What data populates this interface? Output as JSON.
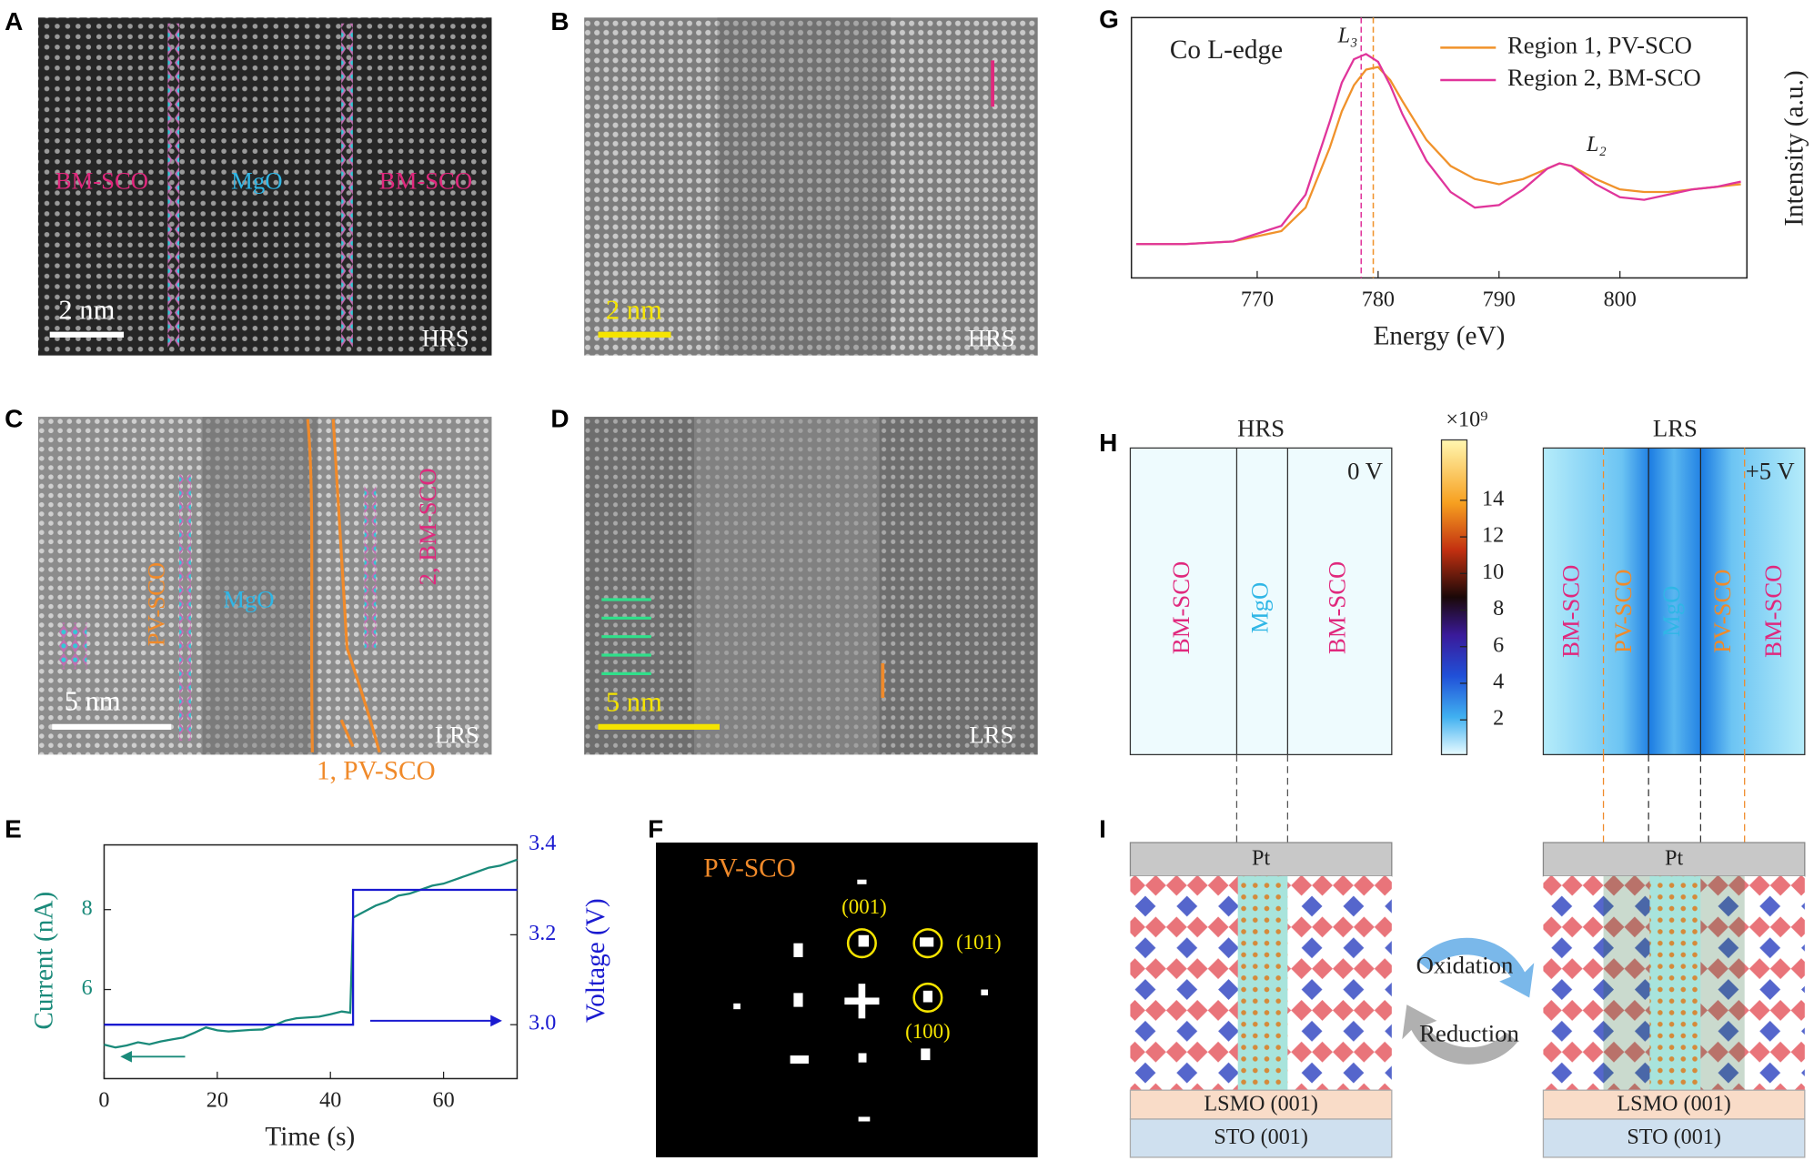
{
  "panels": {
    "A": {
      "letter": "A",
      "labels": [
        "BM-SCO",
        "MgO",
        "BM-SCO"
      ],
      "scale_bar": "2 nm",
      "state": "HRS"
    },
    "B": {
      "letter": "B",
      "scale_bar": "2 nm",
      "state": "HRS"
    },
    "C": {
      "letter": "C",
      "labels": [
        "PV-SCO",
        "MgO",
        "2, BM-SCO",
        "1, PV-SCO"
      ],
      "scale_bar": "5 nm",
      "state": "LRS"
    },
    "D": {
      "letter": "D",
      "scale_bar": "5 nm",
      "state": "LRS"
    },
    "E": {
      "letter": "E"
    },
    "F": {
      "letter": "F",
      "title": "PV-SCO",
      "spots": [
        "(001)",
        "(101)",
        "(100)"
      ]
    },
    "G": {
      "letter": "G"
    },
    "H": {
      "letter": "H",
      "left": {
        "state": "HRS",
        "bias": "0 V",
        "layers": [
          "BM-SCO",
          "MgO",
          "BM-SCO"
        ]
      },
      "right": {
        "state": "LRS",
        "bias": "+5 V",
        "layers": [
          "BM-SCO",
          "PV-SCO",
          "MgO",
          "PV-SCO",
          "BM-SCO"
        ]
      },
      "colorbar": {
        "label": "×10⁹",
        "lim": [
          0.1,
          17.3
        ],
        "ticks": [
          2,
          4,
          6,
          8,
          10,
          12,
          14
        ]
      }
    },
    "I": {
      "letter": "I",
      "top": "Pt",
      "buffer": "LSMO (001)",
      "substrate": "STO (001)",
      "arrows": [
        "Oxidation",
        "Reduction"
      ]
    }
  },
  "chart_data": [
    {
      "type": "line",
      "x_label": "Time (s)",
      "y_label": "Current (nA)",
      "y2_label": "Voltage (V)",
      "xlim": [
        0,
        73
      ],
      "xticks": [
        0,
        20,
        40,
        60
      ],
      "ylim": [
        3.77,
        9.62
      ],
      "yticks": [
        6,
        8
      ],
      "y2lim": [
        2.88,
        3.4
      ],
      "y2ticks": [
        {
          "value": 3.0,
          "label": "3.0"
        },
        {
          "value": 3.2,
          "label": "3.2"
        },
        {
          "value": 3.4,
          "label": "3.4"
        }
      ],
      "series": [
        {
          "color": "#1a8a7a",
          "x": [
            0,
            2,
            4,
            6,
            8,
            10,
            12,
            14,
            16,
            18,
            20,
            22,
            24,
            26,
            28,
            30,
            32,
            34,
            36,
            38,
            40,
            42,
            43.5,
            44,
            46,
            48,
            50,
            52,
            54,
            56,
            58,
            60,
            62,
            64,
            66,
            68,
            70,
            72,
            73
          ],
          "values": [
            4.62,
            4.55,
            4.6,
            4.68,
            4.63,
            4.7,
            4.75,
            4.8,
            4.92,
            5.05,
            4.98,
            4.95,
            4.97,
            4.99,
            5.0,
            5.1,
            5.22,
            5.28,
            5.3,
            5.32,
            5.38,
            5.45,
            5.42,
            7.8,
            7.95,
            8.1,
            8.2,
            8.35,
            8.4,
            8.5,
            8.6,
            8.65,
            8.75,
            8.85,
            8.95,
            9.05,
            9.1,
            9.2,
            9.25
          ]
        },
        {
          "color": "#1a1ad0",
          "axis": "y2",
          "x": [
            0,
            44,
            44,
            73
          ],
          "values": [
            3.0,
            3.0,
            3.3,
            3.3
          ]
        }
      ]
    },
    {
      "type": "line",
      "x_label": "Energy (eV)",
      "y_label": "Intensity (a.u.)",
      "annotations": [
        "Co L-edge",
        "L₃",
        "L₂"
      ],
      "xlim": [
        759.6,
        810.5
      ],
      "xticks": [
        770,
        780,
        790,
        800
      ],
      "ylim": [
        0,
        1
      ],
      "legend": "upper right",
      "x": [
        760,
        764,
        768,
        772,
        774,
        776,
        777,
        778,
        779,
        780,
        781,
        782,
        784,
        786,
        788,
        790,
        792,
        794,
        795,
        796,
        798,
        800,
        802,
        804,
        806,
        808,
        810
      ],
      "series": [
        {
          "name": "Region 1, PV-SCO",
          "color": "#f0922b",
          "values": [
            0.13,
            0.13,
            0.14,
            0.18,
            0.27,
            0.5,
            0.64,
            0.74,
            0.8,
            0.81,
            0.76,
            0.68,
            0.53,
            0.43,
            0.38,
            0.36,
            0.38,
            0.42,
            0.44,
            0.43,
            0.38,
            0.34,
            0.33,
            0.33,
            0.34,
            0.35,
            0.36
          ]
        },
        {
          "name": "Region 2, BM-SCO",
          "color": "#e0359b",
          "values": [
            0.13,
            0.13,
            0.14,
            0.2,
            0.32,
            0.6,
            0.75,
            0.84,
            0.86,
            0.83,
            0.74,
            0.63,
            0.45,
            0.33,
            0.27,
            0.28,
            0.34,
            0.42,
            0.44,
            0.43,
            0.36,
            0.31,
            0.3,
            0.32,
            0.34,
            0.35,
            0.37
          ]
        }
      ],
      "vlines": [
        {
          "x": 778.6,
          "color": "#e0359b"
        },
        {
          "x": 779.6,
          "color": "#f0922b"
        }
      ]
    }
  ]
}
